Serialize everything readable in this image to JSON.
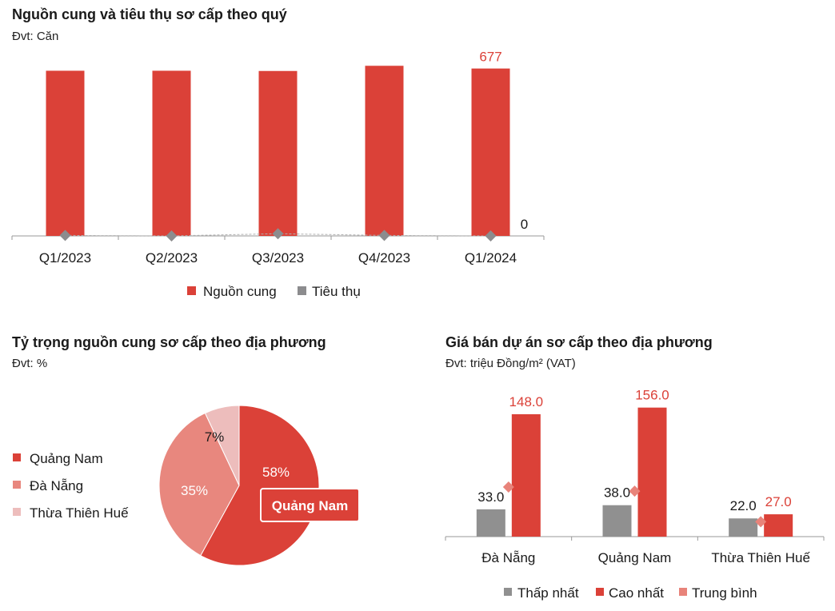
{
  "colors": {
    "supply": "#DB4138",
    "sales": "#8C8C8E",
    "low": "#909090",
    "high": "#DB4138",
    "avg": "#E8837A",
    "pie": [
      "#DB4138",
      "#E8877E",
      "#EDBDBC"
    ],
    "axis": "#999999"
  },
  "chart1": {
    "title": "Nguồn cung và tiêu thụ sơ cấp theo quý",
    "unit": "Đvt: Căn"
  },
  "chart2": {
    "title": "Tỷ trọng nguồn cung sơ cấp theo địa phương",
    "unit": "Đvt: %"
  },
  "chart3": {
    "title": "Giá bán dự án sơ cấp theo địa phương",
    "unit": "Đvt: triệu Đồng/m² (VAT)"
  },
  "chart_data": [
    {
      "type": "bar",
      "title": "Nguồn cung và tiêu thụ sơ cấp theo quý",
      "categories": [
        "Q1/2023",
        "Q2/2023",
        "Q3/2023",
        "Q4/2023",
        "Q1/2024"
      ],
      "series": [
        {
          "name": "Nguồn cung",
          "values": [
            668,
            668,
            667,
            688,
            677
          ],
          "style": "bar"
        },
        {
          "name": "Tiêu thụ",
          "values": [
            2,
            0,
            9,
            2,
            0
          ],
          "style": "dashed-line-diamond"
        }
      ],
      "data_labels": [
        {
          "series": "Nguồn cung",
          "index": 4,
          "text": "677"
        },
        {
          "series": "Tiêu thụ",
          "index": 4,
          "text": "0"
        }
      ],
      "ylim": [
        0,
        760
      ],
      "grid": false,
      "legend": "bottom"
    },
    {
      "type": "pie",
      "title": "Tỷ trọng nguồn cung sơ cấp theo địa phương",
      "labels": [
        "Quảng Nam",
        "Đà Nẵng",
        "Thừa Thiên Huế"
      ],
      "values": [
        58,
        35,
        7
      ],
      "value_labels": [
        "58%",
        "35%",
        "7%"
      ],
      "callout": "Quảng Nam",
      "legend": "left"
    },
    {
      "type": "bar",
      "title": "Giá bán dự án sơ cấp theo địa phương",
      "categories": [
        "Đà Nẵng",
        "Quảng Nam",
        "Thừa Thiên Huế"
      ],
      "series": [
        {
          "name": "Thấp nhất",
          "values": [
            33.0,
            38.0,
            22.0
          ],
          "labels": [
            "33.0",
            "38.0",
            "22.0"
          ],
          "style": "bar"
        },
        {
          "name": "Cao nhất",
          "values": [
            148.0,
            156.0,
            27.0
          ],
          "labels": [
            "148.0",
            "156.0",
            "27.0"
          ],
          "style": "bar"
        },
        {
          "name": "Trung bình",
          "values": [
            60,
            55,
            18
          ],
          "style": "diamond"
        }
      ],
      "ylim": [
        0,
        175
      ],
      "grid": false,
      "legend": "bottom"
    }
  ]
}
